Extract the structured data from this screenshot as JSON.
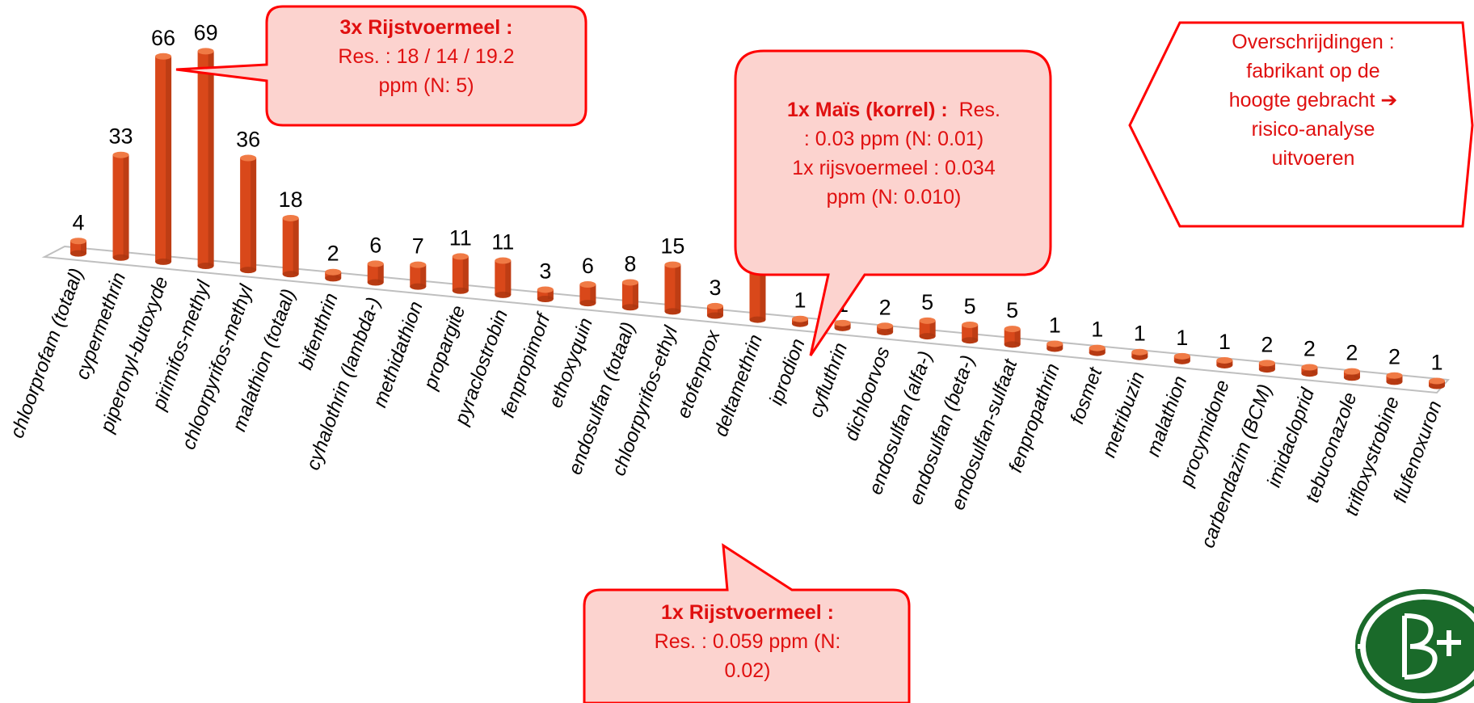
{
  "chart_data": {
    "type": "bar",
    "categories": [
      "chloorprofam (totaal)",
      "cypermethrin",
      "piperonyl-butoxyde",
      "pirimifos-methyl",
      "chloorpyrifos-methyl",
      "malathion (totaal)",
      "bifenthrin",
      "cyhalothrin (lambda-)",
      "methidathion",
      "propargite",
      "pyraclostrobin",
      "fenpropimorf",
      "ethoxyquin",
      "endosulfan (totaal)",
      "chloorpyrifos-ethyl",
      "etofenprox",
      "deltamethrin",
      "iprodion",
      "cyfluthrin",
      "dichloorvos",
      "endosulfan (alfa-)",
      "endosulfan (beta-)",
      "endosulfan-sulfaat",
      "fenpropathrin",
      "fosmet",
      "metribuzin",
      "malathion",
      "procymidone",
      "carbendazim (BCM)",
      "imidacloprid",
      "tebuconazole",
      "trifloxystrobine",
      "flufenoxuron"
    ],
    "values": [
      4,
      33,
      66,
      69,
      36,
      18,
      2,
      6,
      7,
      11,
      11,
      3,
      6,
      8,
      15,
      3,
      36,
      1,
      1,
      2,
      5,
      5,
      5,
      1,
      1,
      1,
      1,
      1,
      2,
      2,
      2,
      2,
      1
    ],
    "bar_color": "#d9481a",
    "title": "",
    "xlabel": "",
    "ylabel": ""
  },
  "callouts": {
    "rijstvoermeel3x": {
      "title": "3x Rijstvoermeel :",
      "lines": [
        "Res. : 18 / 14 / 19.2",
        "ppm (N:  5)"
      ]
    },
    "mais": {
      "title": "1x Maïs (korrel) :",
      "title_suffix": "  Res.",
      "lines": [
        ": 0.03 ppm (N: 0.01)",
        "1x rijsvoermeel : 0.034",
        "ppm (N: 0.010)"
      ]
    },
    "rijstvoermeel1x": {
      "title": "1x Rijstvoermeel :",
      "lines": [
        "Res. : 0.059 ppm (N:",
        "0.02)"
      ]
    },
    "overschrijdingen": {
      "lines": [
        "Overschrijdingen :",
        "fabrikant op de",
        "hoogte gebracht ➔",
        "risico-analyse",
        "uitvoeren"
      ]
    }
  },
  "colors": {
    "callout_fill": "#fcd3cf",
    "callout_border": "#ff0000",
    "callout_text": "#e01010",
    "logo_green": "#1a6a2a"
  }
}
